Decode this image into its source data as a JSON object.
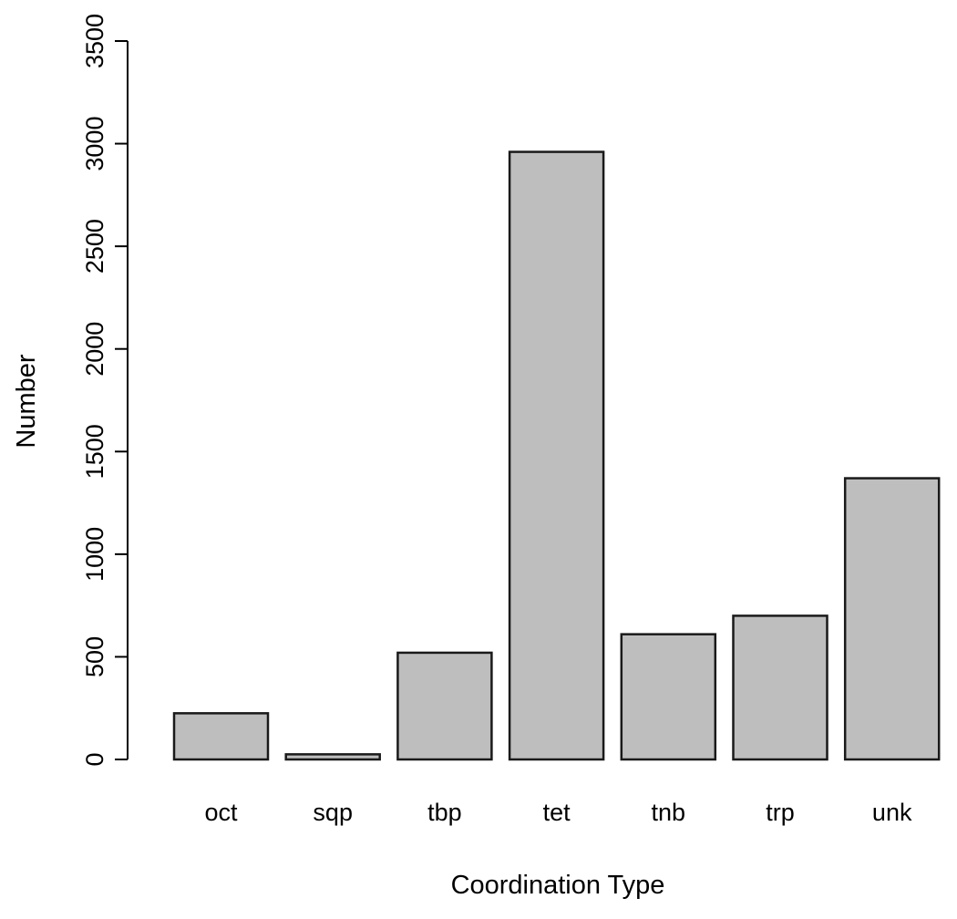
{
  "chart_data": {
    "type": "bar",
    "title": "",
    "xlabel": "Coordination Type",
    "ylabel": "Number",
    "categories": [
      "oct",
      "sqp",
      "tbp",
      "tet",
      "tnb",
      "trp",
      "unk"
    ],
    "values": [
      225,
      25,
      520,
      2960,
      610,
      700,
      1370
    ],
    "ylim": [
      0,
      3500
    ],
    "yticks": [
      "0",
      "500",
      "1000",
      "1500",
      "2000",
      "2500",
      "3000",
      "3500"
    ],
    "grid": false,
    "legend": "none",
    "colors": {
      "bar_fill": "#bebebe",
      "bar_stroke": "#1a1a1a",
      "axis": "#000000"
    }
  }
}
